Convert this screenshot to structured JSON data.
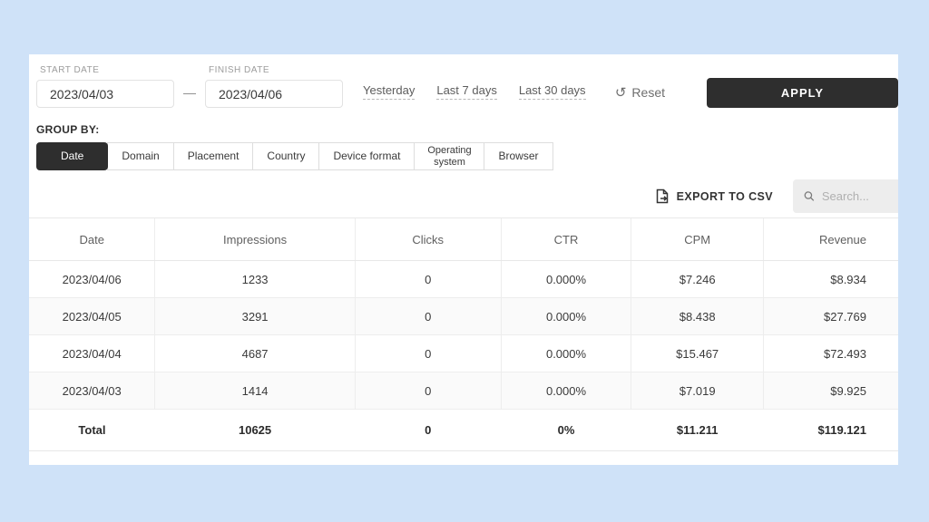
{
  "filters": {
    "start_date": {
      "label": "START DATE",
      "value": "2023/04/03"
    },
    "finish_date": {
      "label": "FINISH DATE",
      "value": "2023/04/06"
    },
    "separator": "—",
    "quick_ranges": [
      "Yesterday",
      "Last 7 days",
      "Last 30 days"
    ],
    "reset_label": "Reset",
    "apply_label": "APPLY"
  },
  "group_by": {
    "label": "GROUP BY:",
    "tabs": [
      {
        "label": "Date",
        "active": true
      },
      {
        "label": "Domain",
        "active": false
      },
      {
        "label": "Placement",
        "active": false
      },
      {
        "label": "Country",
        "active": false
      },
      {
        "label": "Device format",
        "active": false
      },
      {
        "label": "Operating system",
        "active": false
      },
      {
        "label": "Browser",
        "active": false
      }
    ]
  },
  "toolbar": {
    "export_label": "EXPORT TO CSV",
    "search_placeholder": "Search..."
  },
  "table": {
    "columns": [
      "Date",
      "Impressions",
      "Clicks",
      "CTR",
      "CPM",
      "Revenue"
    ],
    "rows": [
      [
        "2023/04/06",
        "1233",
        "0",
        "0.000%",
        "$7.246",
        "$8.934"
      ],
      [
        "2023/04/05",
        "3291",
        "0",
        "0.000%",
        "$8.438",
        "$27.769"
      ],
      [
        "2023/04/04",
        "4687",
        "0",
        "0.000%",
        "$15.467",
        "$72.493"
      ],
      [
        "2023/04/03",
        "1414",
        "0",
        "0.000%",
        "$7.019",
        "$9.925"
      ]
    ],
    "total": [
      "Total",
      "10625",
      "0",
      "0%",
      "$11.211",
      "$119.121"
    ]
  },
  "icons": {
    "reset": "reset-icon",
    "reset_glyph": "↺",
    "export": "export-file-icon",
    "search": "search-icon"
  },
  "colors": {
    "page_background": "#cfe2f8",
    "card_background": "#ffffff",
    "accent_dark": "#2e2e2e",
    "border": "#e8e8e8",
    "muted_text": "#9c9c9c",
    "search_background": "#ededed"
  }
}
